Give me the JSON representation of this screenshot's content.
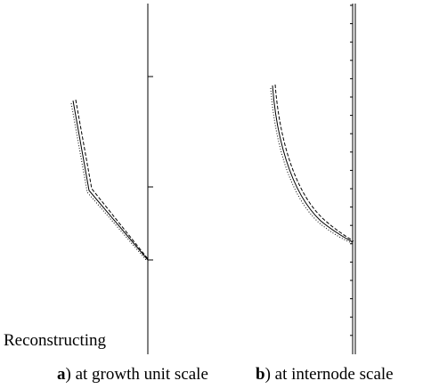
{
  "figure": {
    "side_label": "Reconstructing",
    "panels": [
      {
        "id": "a",
        "letter": "a",
        "caption": ") at growth unit scale"
      },
      {
        "id": "b",
        "letter": "b",
        "caption": ") at internode scale"
      }
    ]
  },
  "colors": {
    "background": "#ffffff",
    "ink": "#000000"
  }
}
